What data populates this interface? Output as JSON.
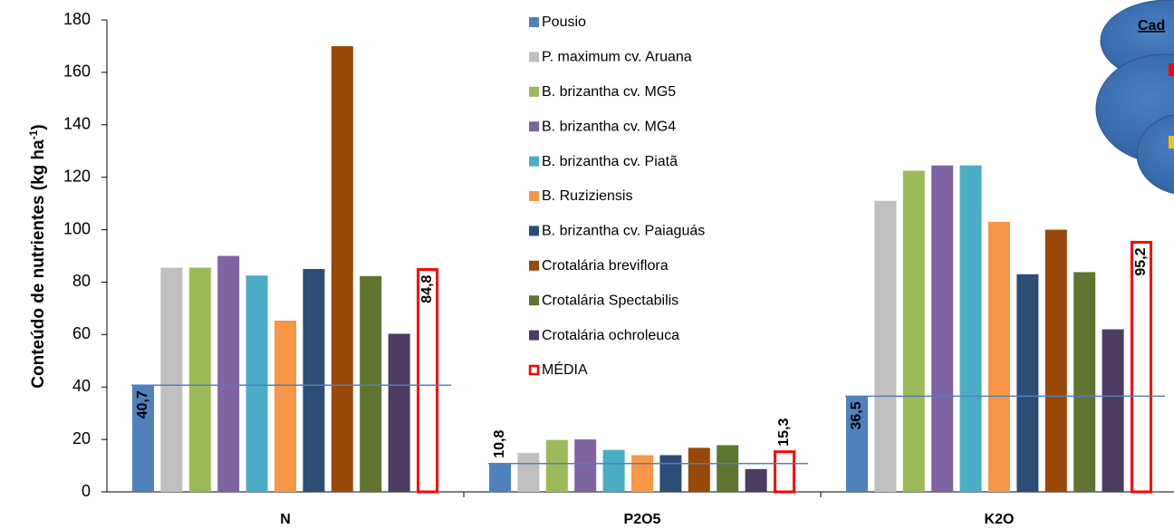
{
  "chart_data": {
    "type": "bar",
    "y_label": "Conteúdo de nutrientes (kg ha",
    "y_label_sup": "-1",
    "y_label_end": ")",
    "annotation": "Cad",
    "categories": [
      "N",
      "P2O5",
      "K2O"
    ],
    "ylim": [
      0,
      180
    ],
    "yticks": [
      0,
      20,
      40,
      60,
      80,
      100,
      120,
      140,
      160,
      180
    ],
    "reference_line_series": 0,
    "reference_line_color": "#4f81bd",
    "series": [
      {
        "name": "Pousio",
        "color": "#4f81bd",
        "values": [
          40.7,
          10.8,
          36.5
        ],
        "value_labels": [
          "40,7",
          "10,8",
          "36,5"
        ]
      },
      {
        "name": "P. maximum cv. Aruana",
        "color": "#bfbfbf",
        "values": [
          85.5,
          14.8,
          111
        ]
      },
      {
        "name": "B. brizantha cv. MG5",
        "color": "#9bbb59",
        "values": [
          85.5,
          19.8,
          122.5
        ]
      },
      {
        "name": "B. brizantha cv. MG4",
        "color": "#8064a2",
        "values": [
          90,
          20,
          124.5
        ]
      },
      {
        "name": "B. brizantha cv. Piatã",
        "color": "#4bacc6",
        "values": [
          82.5,
          16,
          124.5
        ]
      },
      {
        "name": "B. Ruziziensis",
        "color": "#f79646",
        "values": [
          65.3,
          14,
          103
        ]
      },
      {
        "name": "B. brizantha cv. Paiaguás",
        "color": "#2c4d75",
        "values": [
          85,
          14,
          83
        ]
      },
      {
        "name": "Crotalária breviflora",
        "color": "#984807",
        "values": [
          170,
          16.8,
          100
        ]
      },
      {
        "name": "Crotalária Spectabilis",
        "color": "#5f7530",
        "values": [
          82.3,
          17.8,
          83.8
        ]
      },
      {
        "name": "Crotalária ochroleuca",
        "color": "#4d3b62",
        "values": [
          60.3,
          8.7,
          62
        ]
      },
      {
        "name": "MÉDIA",
        "color": "#ff0000",
        "outline": true,
        "values": [
          84.8,
          15.3,
          95.2
        ],
        "value_labels": [
          "84,8",
          "15,3",
          "95,2"
        ]
      }
    ]
  }
}
